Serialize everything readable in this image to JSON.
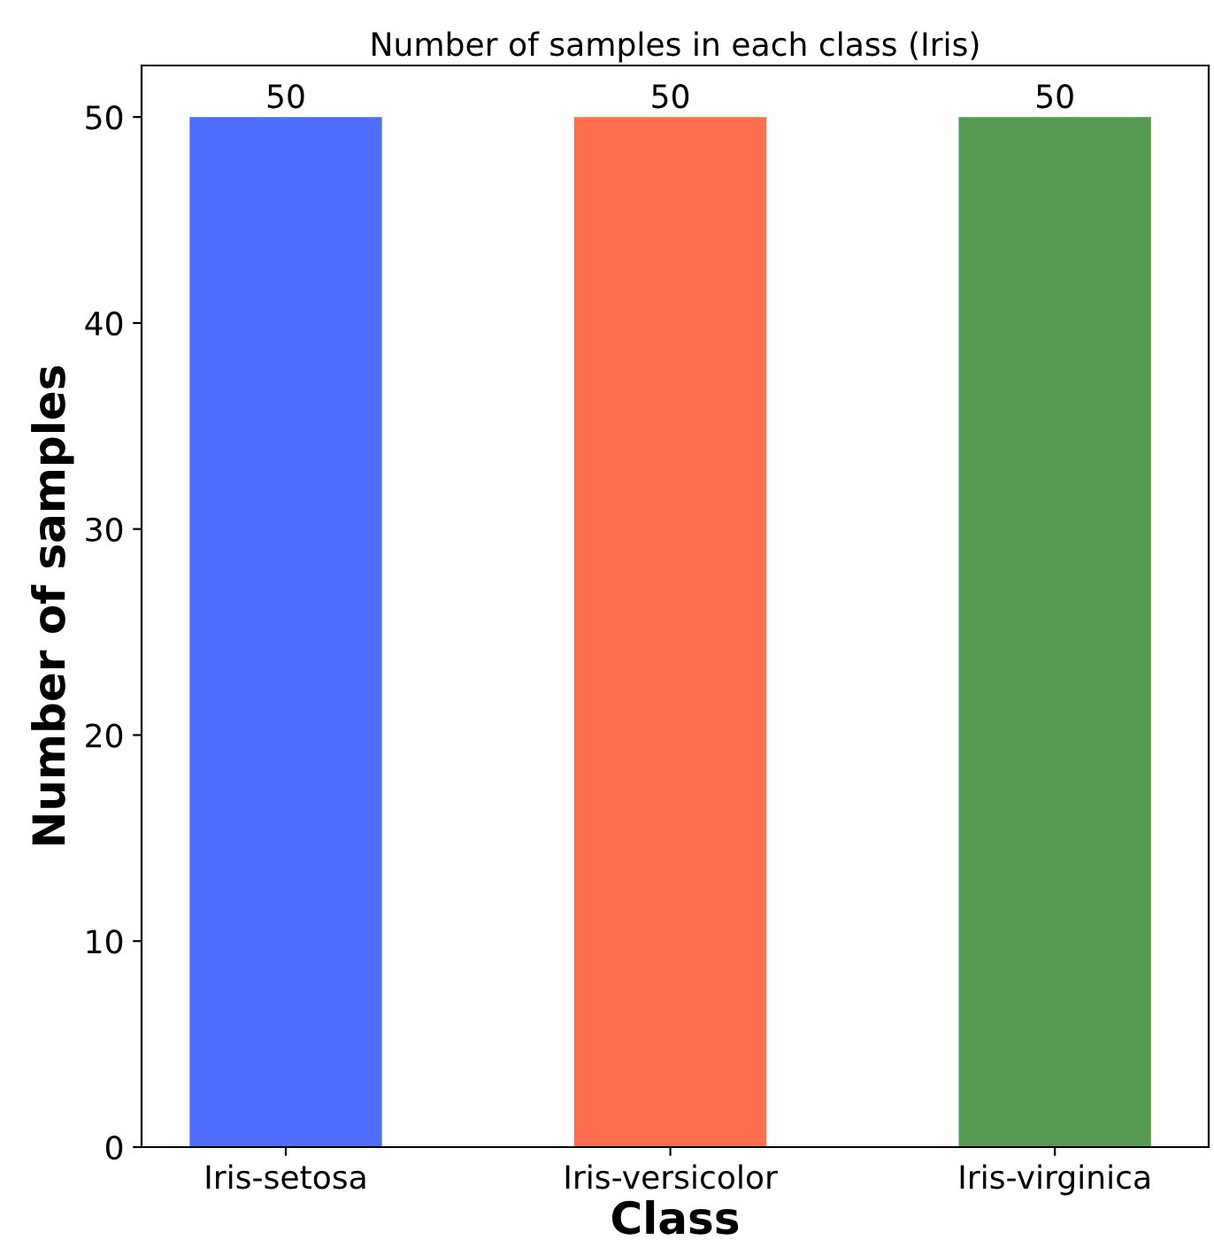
{
  "chart_data": {
    "type": "bar",
    "title": "Number of samples in each class (Iris)",
    "xlabel": "Class",
    "ylabel": "Number of samples",
    "categories": [
      "Iris-setosa",
      "Iris-versicolor",
      "Iris-virginica"
    ],
    "values": [
      50,
      50,
      50
    ],
    "colors": [
      "#4f6dff",
      "#ff6e4f",
      "#559a50"
    ],
    "ylim": [
      0,
      52.5
    ],
    "yticks": [
      0,
      10,
      20,
      30,
      40,
      50
    ],
    "data_labels": true,
    "grid": false
  }
}
